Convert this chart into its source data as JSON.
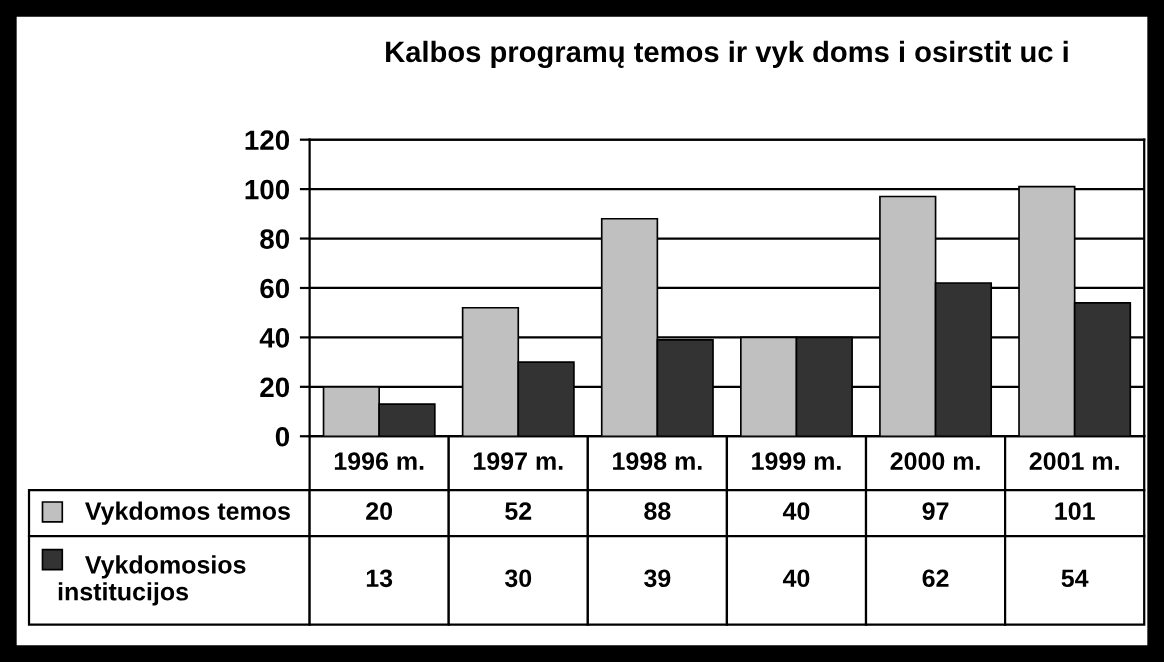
{
  "chart_data": {
    "type": "bar",
    "title": "Kalbos programų temos ir vyk doms i osirstit uc i",
    "categories": [
      "1996 m.",
      "1997 m.",
      "1998 m.",
      "1999 m.",
      "2000 m.",
      "2001 m."
    ],
    "series": [
      {
        "name": "Vykdomos temos",
        "color": "#c0c0c0",
        "values": [
          20,
          52,
          88,
          40,
          97,
          101
        ]
      },
      {
        "name": "Vykdomosios\ninstitucijos",
        "color": "#333333",
        "values": [
          13,
          30,
          39,
          40,
          62,
          54
        ]
      }
    ],
    "ylim": [
      0,
      120
    ],
    "yticks": [
      0,
      20,
      40,
      60,
      80,
      100,
      120
    ],
    "grid": "y",
    "data_labels": true,
    "legend": "bottom left"
  }
}
